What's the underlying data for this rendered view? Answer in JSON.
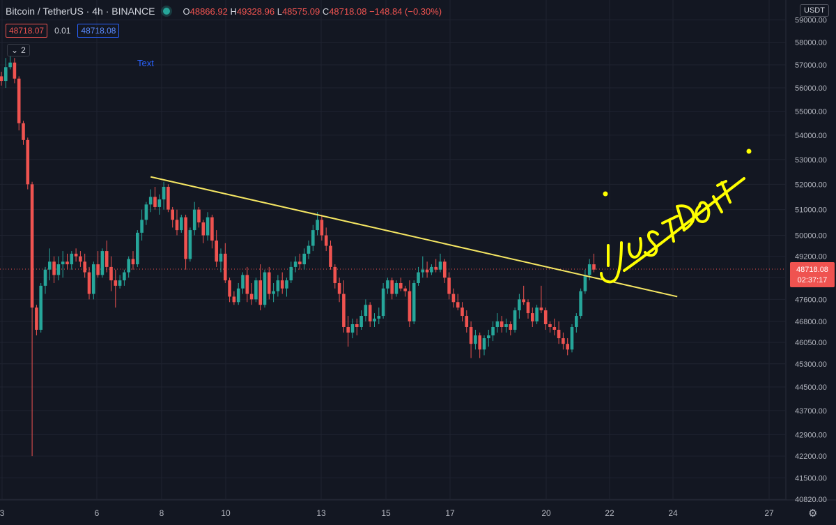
{
  "header": {
    "symbol": "Bitcoin / TetherUS · 4h · BINANCE",
    "o_key": "O",
    "o_val": "48866.92",
    "h_key": "H",
    "h_val": "49328.96",
    "l_key": "L",
    "l_val": "48575.09",
    "c_key": "C",
    "c_val": "48718.08",
    "change": "−148.84 (−0.30%)",
    "sell_price": "48718.07",
    "spread": "0.01",
    "buy_price": "48718.08",
    "collapse_count": "2"
  },
  "text_annotation": "Text",
  "currency_label": "USDT",
  "handwriting": "JUST DO IT",
  "colors": {
    "background": "#131722",
    "up": "#26a69a",
    "down": "#ef5350",
    "trendline": "#f5e663",
    "handwriting": "#ffff00",
    "accent": "#2962ff"
  },
  "chart_data": {
    "type": "candlestick",
    "title": "Bitcoin / TetherUS · 4h · BINANCE",
    "y_ticks": [
      "59000.00",
      "58000.00",
      "57000.00",
      "56000.00",
      "55000.00",
      "54000.00",
      "53000.00",
      "52000.00",
      "51000.00",
      "50000.00",
      "49200.00",
      "48400.00",
      "47600.00",
      "46800.00",
      "46050.00",
      "45300.00",
      "44500.00",
      "43700.00",
      "42900.00",
      "42200.00",
      "41500.00",
      "40820.00"
    ],
    "x_ticks": [
      "3",
      "6",
      "8",
      "10",
      "13",
      "15",
      "17",
      "20",
      "22",
      "24",
      "27"
    ],
    "last_price": "48718.08",
    "countdown": "02:37:17",
    "y_scale": "log",
    "grid": true,
    "trendline": {
      "from": {
        "bar": 34,
        "price": 52300
      },
      "to": {
        "bar": 154,
        "price": 47700
      }
    },
    "ohlc": [
      [
        56500,
        56700,
        56100,
        56300
      ],
      [
        56300,
        57300,
        56000,
        56900
      ],
      [
        56900,
        57400,
        56800,
        57100
      ],
      [
        57100,
        57300,
        56200,
        56400
      ],
      [
        56400,
        56500,
        54200,
        54500
      ],
      [
        54500,
        54600,
        53600,
        53800
      ],
      [
        53800,
        53900,
        51800,
        52000
      ],
      [
        52000,
        52100,
        42200,
        47300
      ],
      [
        47300,
        47400,
        46300,
        46500
      ],
      [
        46500,
        48200,
        46400,
        48100
      ],
      [
        48100,
        48800,
        47800,
        48700
      ],
      [
        48700,
        49500,
        48300,
        49000
      ],
      [
        49000,
        49200,
        48200,
        48500
      ],
      [
        48500,
        49200,
        48300,
        48900
      ],
      [
        48900,
        49400,
        48400,
        49000
      ],
      [
        49000,
        49300,
        48700,
        48900
      ],
      [
        48900,
        49400,
        48700,
        49300
      ],
      [
        49300,
        49500,
        49000,
        49200
      ],
      [
        49200,
        49400,
        48800,
        49000
      ],
      [
        49000,
        49300,
        48400,
        48600
      ],
      [
        48600,
        48800,
        47600,
        47800
      ],
      [
        47800,
        49000,
        47600,
        48900
      ],
      [
        48900,
        49400,
        48400,
        48500
      ],
      [
        48500,
        49500,
        48400,
        49400
      ],
      [
        49400,
        49800,
        48600,
        48800
      ],
      [
        48800,
        49200,
        47900,
        48300
      ],
      [
        48300,
        48700,
        47300,
        48100
      ],
      [
        48100,
        48500,
        48000,
        48300
      ],
      [
        48300,
        48700,
        48100,
        48600
      ],
      [
        48600,
        49200,
        48400,
        49100
      ],
      [
        49100,
        49400,
        48700,
        48900
      ],
      [
        48900,
        50200,
        48800,
        50100
      ],
      [
        50100,
        51000,
        49800,
        50600
      ],
      [
        50600,
        51300,
        50400,
        51200
      ],
      [
        51200,
        51800,
        50900,
        51500
      ],
      [
        51500,
        51900,
        51000,
        51100
      ],
      [
        51100,
        51600,
        50800,
        51400
      ],
      [
        51400,
        52100,
        51000,
        51900
      ],
      [
        51900,
        52000,
        50900,
        51000
      ],
      [
        51000,
        51100,
        50300,
        50600
      ],
      [
        50600,
        51000,
        50000,
        50200
      ],
      [
        50200,
        50800,
        50100,
        50700
      ],
      [
        50700,
        50800,
        48700,
        49100
      ],
      [
        49100,
        50300,
        49000,
        50200
      ],
      [
        50200,
        51300,
        50000,
        51000
      ],
      [
        51000,
        51100,
        50300,
        50500
      ],
      [
        50500,
        50600,
        49700,
        50000
      ],
      [
        50000,
        50900,
        49800,
        50700
      ],
      [
        50700,
        50800,
        49500,
        49800
      ],
      [
        49800,
        50200,
        48800,
        49000
      ],
      [
        49000,
        49500,
        48600,
        49300
      ],
      [
        49300,
        49700,
        48200,
        48300
      ],
      [
        48300,
        48400,
        47500,
        47700
      ],
      [
        47700,
        47900,
        47400,
        47500
      ],
      [
        47500,
        48200,
        47400,
        48000
      ],
      [
        48000,
        48600,
        47800,
        48500
      ],
      [
        48500,
        48800,
        47500,
        47800
      ],
      [
        47800,
        48200,
        47400,
        47600
      ],
      [
        47600,
        48400,
        47500,
        48300
      ],
      [
        48300,
        48900,
        47200,
        47400
      ],
      [
        47400,
        48700,
        47300,
        48600
      ],
      [
        48600,
        48800,
        47600,
        47800
      ],
      [
        47800,
        48200,
        47500,
        47900
      ],
      [
        47900,
        48500,
        47700,
        48300
      ],
      [
        48300,
        48600,
        47800,
        48000
      ],
      [
        48000,
        48400,
        47700,
        48300
      ],
      [
        48300,
        49000,
        48200,
        48800
      ],
      [
        48800,
        49200,
        48600,
        49000
      ],
      [
        49000,
        49300,
        48700,
        48900
      ],
      [
        48900,
        49500,
        48700,
        49300
      ],
      [
        49300,
        49800,
        49100,
        49600
      ],
      [
        49600,
        50400,
        49400,
        50200
      ],
      [
        50200,
        50900,
        50000,
        50600
      ],
      [
        50600,
        50800,
        49800,
        50000
      ],
      [
        50000,
        50300,
        49400,
        49600
      ],
      [
        49600,
        49800,
        48700,
        48800
      ],
      [
        48800,
        48900,
        48000,
        48200
      ],
      [
        48200,
        48400,
        47500,
        47800
      ],
      [
        47800,
        48300,
        46400,
        46600
      ],
      [
        46600,
        47000,
        45900,
        46400
      ],
      [
        46400,
        46900,
        46200,
        46700
      ],
      [
        46700,
        46900,
        46300,
        46600
      ],
      [
        46600,
        47200,
        46500,
        47000
      ],
      [
        47000,
        47600,
        46800,
        47400
      ],
      [
        47400,
        47500,
        46600,
        46800
      ],
      [
        46800,
        47100,
        46600,
        46900
      ],
      [
        46900,
        47300,
        46700,
        47000
      ],
      [
        47000,
        48200,
        46900,
        48000
      ],
      [
        48000,
        48400,
        47800,
        48300
      ],
      [
        48300,
        48400,
        47600,
        47800
      ],
      [
        47800,
        48300,
        47700,
        48200
      ],
      [
        48200,
        48400,
        47900,
        48000
      ],
      [
        48000,
        48100,
        47700,
        47900
      ],
      [
        47900,
        48300,
        46600,
        46800
      ],
      [
        46800,
        48300,
        46700,
        48200
      ],
      [
        48200,
        48800,
        48100,
        48600
      ],
      [
        48600,
        49200,
        48400,
        48700
      ],
      [
        48700,
        49000,
        48400,
        48600
      ],
      [
        48600,
        48900,
        48500,
        48800
      ],
      [
        48800,
        49100,
        48600,
        48700
      ],
      [
        48700,
        49300,
        48600,
        49000
      ],
      [
        49000,
        49100,
        48200,
        48400
      ],
      [
        48400,
        48600,
        47600,
        47800
      ],
      [
        47800,
        48000,
        47300,
        47500
      ],
      [
        47500,
        47800,
        47200,
        47300
      ],
      [
        47300,
        47500,
        46800,
        47000
      ],
      [
        47000,
        47200,
        46400,
        46600
      ],
      [
        46600,
        46800,
        45500,
        46000
      ],
      [
        46000,
        46500,
        45800,
        46300
      ],
      [
        46300,
        46400,
        45500,
        45800
      ],
      [
        45800,
        46300,
        45600,
        46200
      ],
      [
        46200,
        46500,
        45900,
        46300
      ],
      [
        46300,
        46800,
        46100,
        46600
      ],
      [
        46600,
        47100,
        46400,
        46800
      ],
      [
        46800,
        47000,
        46400,
        46600
      ],
      [
        46600,
        46900,
        46400,
        46700
      ],
      [
        46700,
        46800,
        46300,
        46500
      ],
      [
        46500,
        47300,
        46400,
        47200
      ],
      [
        47200,
        47800,
        46900,
        47600
      ],
      [
        47600,
        48100,
        47400,
        47500
      ],
      [
        47500,
        47600,
        46900,
        47100
      ],
      [
        47100,
        47300,
        46600,
        46800
      ],
      [
        46800,
        47400,
        46700,
        47300
      ],
      [
        47300,
        48100,
        47100,
        47200
      ],
      [
        47200,
        47300,
        46500,
        46700
      ],
      [
        46700,
        46800,
        46400,
        46600
      ],
      [
        46600,
        46900,
        46300,
        46500
      ],
      [
        46500,
        46800,
        46000,
        46200
      ],
      [
        46200,
        46400,
        45800,
        46000
      ],
      [
        46000,
        46200,
        45600,
        45800
      ],
      [
        45800,
        46700,
        45700,
        46600
      ],
      [
        46600,
        47100,
        46400,
        47000
      ],
      [
        47000,
        48000,
        46900,
        47900
      ],
      [
        47900,
        48700,
        47800,
        48500
      ],
      [
        48500,
        49100,
        48300,
        48900
      ],
      [
        48900,
        49300,
        48600,
        48700
      ]
    ]
  }
}
